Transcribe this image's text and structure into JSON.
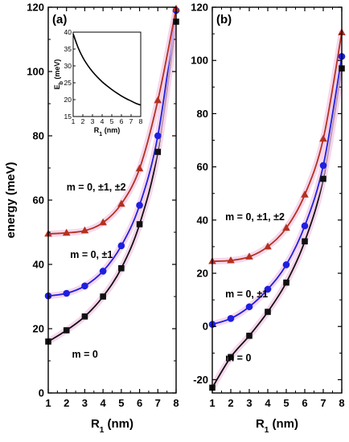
{
  "figure": {
    "colors": {
      "black": "#111111",
      "blue": "#1f1fe0",
      "red": "#b3311f",
      "shade": "#f3c9e6"
    }
  },
  "chart_data": [
    {
      "id": "a",
      "type": "line",
      "panel_label": "(a)",
      "xlabel": "R",
      "xlabel_sub": "1",
      "xlabel_unit": " (nm)",
      "ylabel": "energy (meV)",
      "xlim": [
        1,
        8
      ],
      "ylim": [
        0,
        120
      ],
      "xticks": [
        1,
        2,
        3,
        4,
        5,
        6,
        7,
        8
      ],
      "yticks": [
        0,
        20,
        40,
        60,
        80,
        100,
        120
      ],
      "series": [
        {
          "marker": "square",
          "color_key": "black",
          "x": [
            1,
            2,
            3,
            4,
            5,
            6,
            7,
            8
          ],
          "y": [
            16,
            19.5,
            23.8,
            30,
            38.8,
            52.5,
            75,
            115.5
          ]
        },
        {
          "marker": "circle",
          "color_key": "blue",
          "x": [
            1,
            2,
            3,
            4,
            5,
            6,
            7,
            8
          ],
          "y": [
            30.2,
            31,
            33.3,
            37.9,
            45.8,
            58.4,
            80,
            119
          ]
        },
        {
          "marker": "triangle",
          "color_key": "red",
          "x": [
            1,
            2,
            3,
            4,
            5,
            6,
            7,
            8
          ],
          "y": [
            49.5,
            49.8,
            50.5,
            53,
            58.8,
            69.8,
            91,
            119.5
          ]
        }
      ],
      "annotations": [
        {
          "text": "m = 0, ±1, ±2",
          "ax": 2.0,
          "ay": 63
        },
        {
          "text": "m = 0, ±1",
          "ax": 2.2,
          "ay": 42
        },
        {
          "text": "m = 0",
          "ax": 2.3,
          "ay": 11
        }
      ],
      "inset": {
        "type": "line",
        "xlabel": "R",
        "xlabel_sub": "1",
        "xlabel_unit": " (nm)",
        "ylabel": "E",
        "ylabel_sub": "b",
        "ylabel_unit": " (meV)",
        "xlim": [
          1,
          8
        ],
        "ylim": [
          15,
          40
        ],
        "xticks": [
          1,
          2,
          3,
          4,
          5,
          6,
          7,
          8
        ],
        "yticks": [
          15,
          20,
          25,
          30,
          35,
          40
        ],
        "x": [
          1,
          1.5,
          2,
          2.5,
          3,
          3.5,
          4,
          4.5,
          5,
          5.5,
          6,
          6.5,
          7,
          7.5,
          8
        ],
        "y": [
          39.5,
          35.5,
          32.5,
          30.2,
          28.3,
          26.7,
          25.3,
          24.1,
          23.0,
          22.0,
          21.1,
          20.3,
          19.6,
          18.9,
          18.4
        ]
      }
    },
    {
      "id": "b",
      "type": "line",
      "panel_label": "(b)",
      "xlabel": "R",
      "xlabel_sub": "1",
      "xlabel_unit": " (nm)",
      "ylabel": "",
      "xlim": [
        1,
        8
      ],
      "ylim": [
        -25,
        120
      ],
      "xticks": [
        1,
        2,
        3,
        4,
        5,
        6,
        7,
        8
      ],
      "yticks": [
        -20,
        0,
        20,
        40,
        60,
        80,
        100,
        120
      ],
      "series": [
        {
          "marker": "square",
          "color_key": "black",
          "x": [
            1,
            2,
            3,
            4,
            5,
            6,
            7,
            8
          ],
          "y": [
            -23,
            -11.5,
            -3.5,
            5.5,
            16.5,
            32,
            55.5,
            97
          ]
        },
        {
          "marker": "circle",
          "color_key": "blue",
          "x": [
            1,
            2,
            3,
            4,
            5,
            6,
            7,
            8
          ],
          "y": [
            0.8,
            3,
            7.4,
            14,
            23.2,
            37.8,
            60.5,
            101.5
          ]
        },
        {
          "marker": "triangle",
          "color_key": "red",
          "x": [
            1,
            2,
            3,
            4,
            5,
            6,
            7,
            8
          ],
          "y": [
            24.5,
            24.8,
            26.2,
            30,
            37,
            49.5,
            70.5,
            110.5
          ]
        }
      ],
      "annotations": [
        {
          "text": "m = 0, ±1, ±2",
          "ax": 1.7,
          "ay": 40
        },
        {
          "text": "m = 0, ±1",
          "ax": 1.7,
          "ay": 11
        },
        {
          "text": "m = 0",
          "ax": 1.7,
          "ay": -13
        }
      ]
    }
  ]
}
